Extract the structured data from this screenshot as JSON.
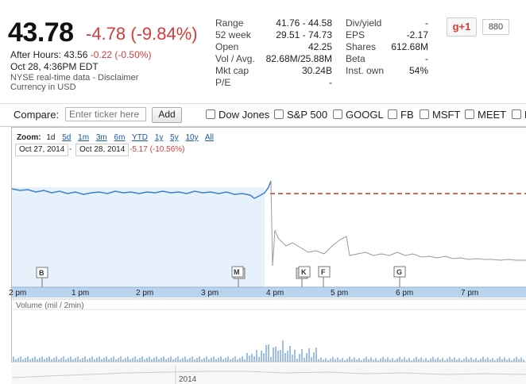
{
  "quote": {
    "price": "43.78",
    "change": "-4.78 (-9.84%)",
    "after_hours_label": "After Hours: 43.56",
    "after_hours_change": "-0.22 (-0.50%)",
    "timestamp": "Oct 28, 4:36PM EDT",
    "realtime_note": "NYSE real-time data - Disclaimer",
    "currency_note": "Currency in USD"
  },
  "stats_left": [
    {
      "label": "Range",
      "value": "41.76 - 44.58"
    },
    {
      "label": "52 week",
      "value": "29.51 - 74.73"
    },
    {
      "label": "Open",
      "value": "42.25"
    },
    {
      "label": "Vol / Avg.",
      "value": "82.68M/25.88M"
    },
    {
      "label": "Mkt cap",
      "value": "30.24B"
    },
    {
      "label": "P/E",
      "value": "-"
    }
  ],
  "stats_right": [
    {
      "label": "Div/yield",
      "value": "-"
    },
    {
      "label": "EPS",
      "value": "-2.17"
    },
    {
      "label": "Shares",
      "value": "612.68M"
    },
    {
      "label": "Beta",
      "value": "-"
    },
    {
      "label": "Inst. own",
      "value": "54%"
    }
  ],
  "social": {
    "gplus_label": "g+1",
    "gplus_count": "880"
  },
  "compare": {
    "label": "Compare:",
    "input_placeholder": "Enter ticker here",
    "add_label": "Add",
    "options": [
      "Dow Jones",
      "S&P 500",
      "GOOGL",
      "FB",
      "MSFT",
      "MEET",
      "L"
    ]
  },
  "zoom": {
    "label": "Zoom:",
    "options": [
      "1d",
      "5d",
      "1m",
      "3m",
      "6m",
      "YTD",
      "1y",
      "5y",
      "10y",
      "All"
    ],
    "active": "1d"
  },
  "range": {
    "from": "Oct 27, 2014",
    "separator": "-",
    "to": "Oct 28, 2014",
    "change": "-5.17 (-10.56%)"
  },
  "chart_data": {
    "type": "line",
    "x_tick_labels": [
      "2 pm",
      "1 pm",
      "2 pm",
      "3 pm",
      "4 pm",
      "5 pm",
      "6 pm",
      "7 pm"
    ],
    "news_markers": [
      "B",
      "M",
      "K",
      "F",
      "G"
    ],
    "volume_label": "Volume (mil / 2min)",
    "navigator_year": "2014",
    "colors": {
      "line": "#3a7fd0",
      "fill": "#e6f1fb",
      "after_hours_line": "#999999",
      "prev_close": "#c0392b",
      "axis_band": "#b9d4ef",
      "volume": "#3a7fd0"
    }
  }
}
